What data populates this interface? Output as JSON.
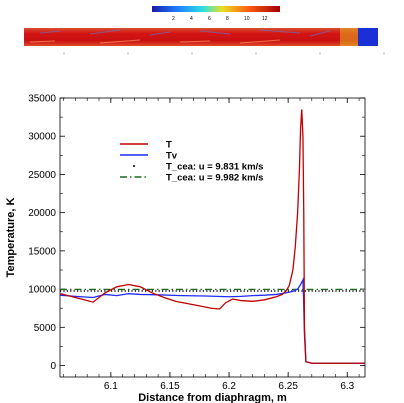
{
  "colors": {
    "T": "#c00000",
    "Tv": "#1f2bff",
    "cea_9831": "#000000",
    "cea_9982": "#1e6b1e",
    "contour_red": "#d41414",
    "contour_blue": "#1a2fd6"
  },
  "colorbar": {
    "labels": [
      "2",
      "4",
      "6",
      "8",
      "10",
      "12"
    ]
  },
  "chart_data": {
    "type": "line",
    "title": "",
    "xlabel": "Distance from diaphragm, m",
    "ylabel": "Temperature, K",
    "xlim": [
      6.057,
      6.315
    ],
    "ylim": [
      -1500,
      35000
    ],
    "xticks": [
      6.1,
      6.15,
      6.2,
      6.25,
      6.3
    ],
    "xtick_labels": [
      "6.1",
      "6.15",
      "6.2",
      "6.25",
      "6.3"
    ],
    "yticks": [
      0,
      5000,
      10000,
      15000,
      20000,
      25000,
      30000,
      35000
    ],
    "ytick_labels": [
      "0",
      "5000",
      "10000",
      "15000",
      "20000",
      "25000",
      "30000",
      "35000"
    ],
    "legend_position": "upper-left-inside",
    "series": [
      {
        "name": "T",
        "style": "solid",
        "color": "#c00000",
        "x": [
          6.057,
          6.07,
          6.085,
          6.095,
          6.105,
          6.115,
          6.125,
          6.135,
          6.145,
          6.155,
          6.165,
          6.175,
          6.185,
          6.192,
          6.197,
          6.203,
          6.21,
          6.22,
          6.23,
          6.24,
          6.245,
          6.248,
          6.251,
          6.254,
          6.256,
          6.258,
          6.2595,
          6.2605,
          6.2615,
          6.2625,
          6.2632,
          6.2638,
          6.265,
          6.27,
          6.315
        ],
        "y": [
          9400,
          8900,
          8300,
          9500,
          10300,
          10600,
          10300,
          9500,
          8900,
          8400,
          8100,
          7800,
          7500,
          7400,
          8200,
          8700,
          8500,
          8400,
          8600,
          9000,
          9300,
          9700,
          10500,
          12500,
          15500,
          20000,
          25500,
          31000,
          33500,
          30000,
          20000,
          5000,
          500,
          300,
          300
        ]
      },
      {
        "name": "Tv",
        "style": "solid",
        "color": "#1f2bff",
        "x": [
          6.057,
          6.07,
          6.085,
          6.095,
          6.105,
          6.115,
          6.125,
          6.14,
          6.16,
          6.18,
          6.2,
          6.21,
          6.22,
          6.23,
          6.24,
          6.248,
          6.254,
          6.258,
          6.2605,
          6.2625,
          6.263,
          6.2638,
          6.265,
          6.27,
          6.315
        ],
        "y": [
          9200,
          9050,
          8900,
          9300,
          9150,
          9400,
          9300,
          9250,
          9150,
          9100,
          9000,
          9050,
          9150,
          9200,
          9300,
          9500,
          9700,
          10000,
          10600,
          11200,
          9000,
          4000,
          500,
          300,
          300
        ]
      },
      {
        "name": "T_cea: u = 9.831 km/s",
        "style": "dotted",
        "color": "#000000",
        "x": [
          6.057,
          6.315
        ],
        "y": [
          9750,
          9750
        ]
      },
      {
        "name": "T_cea: u = 9.982 km/s",
        "style": "dashdot",
        "color": "#1e6b1e",
        "x": [
          6.057,
          6.315
        ],
        "y": [
          9950,
          9950
        ]
      }
    ]
  }
}
